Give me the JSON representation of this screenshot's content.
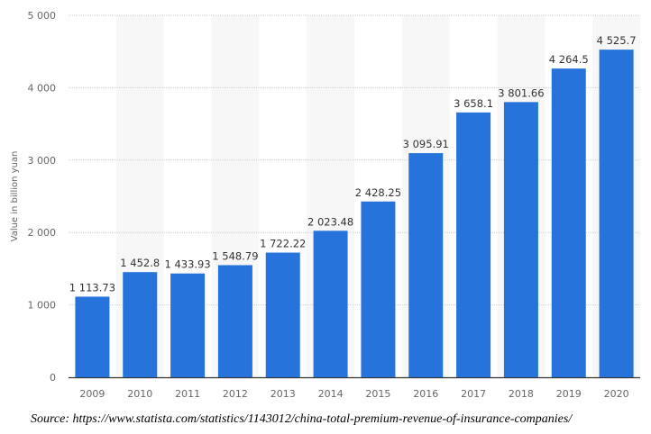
{
  "chart_data": {
    "type": "bar",
    "title": "",
    "xlabel": "",
    "ylabel": "Value in billion yuan",
    "ylim": [
      0,
      5000
    ],
    "yticks": [
      0,
      1000,
      2000,
      3000,
      4000,
      5000
    ],
    "ytick_labels": [
      "0",
      "1 000",
      "2 000",
      "3 000",
      "4 000",
      "5 000"
    ],
    "grid": true,
    "categories": [
      "2009",
      "2010",
      "2011",
      "2012",
      "2013",
      "2014",
      "2015",
      "2016",
      "2017",
      "2018",
      "2019",
      "2020"
    ],
    "values": [
      1113.73,
      1452.8,
      1433.93,
      1548.79,
      1722.22,
      2023.48,
      2428.25,
      3095.91,
      3658.1,
      3801.66,
      4264.5,
      4525.7
    ],
    "data_labels": [
      "1 113.73",
      "1 452.8",
      "1 433.93",
      "1 548.79",
      "1 722.22",
      "2 023.48",
      "2 428.25",
      "3 095.91",
      "3 658.1",
      "3 801.66",
      "4 264.5",
      "4 525.7"
    ],
    "bar_color": "#2673db",
    "band_color": "#f7f7f7"
  },
  "source": "Source: https://www.statista.com/statistics/1143012/china-total-premium-revenue-of-insurance-companies/"
}
